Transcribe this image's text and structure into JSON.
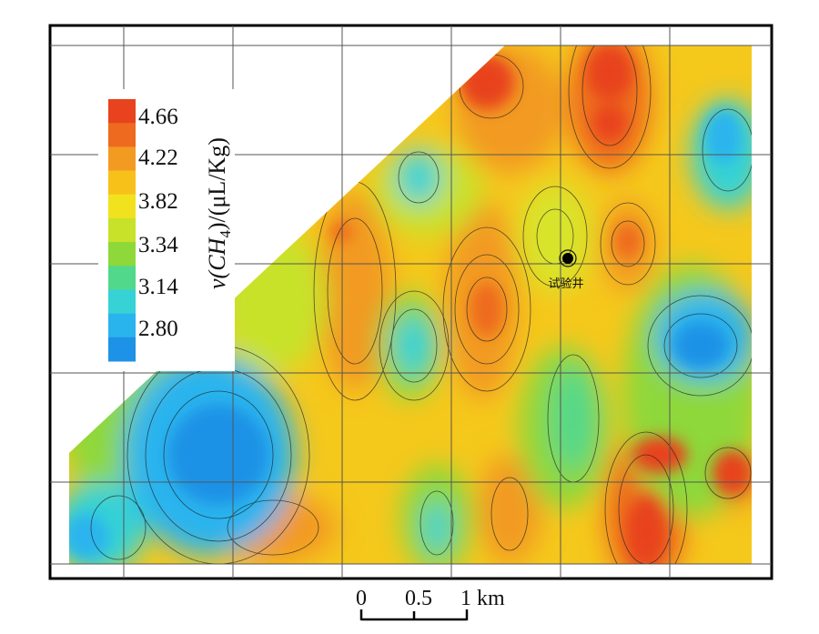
{
  "legend": {
    "ticks": [
      "4.66",
      "4.22",
      "3.82",
      "3.34",
      "3.14",
      "2.80"
    ],
    "unit_prefix": "v(CH",
    "unit_sub": "4",
    "unit_suffix": ")/(μL/Kg)",
    "colors": [
      "#e8421e",
      "#ee6a1e",
      "#f29a22",
      "#f7c11a",
      "#f2e21e",
      "#c8e22a",
      "#8ed83a",
      "#52d88a",
      "#36d2d6",
      "#2ab4ee",
      "#1e92e6"
    ]
  },
  "well": {
    "label": "试验井"
  },
  "scale_bar": {
    "labels": [
      "0",
      "0.5",
      "1 km"
    ]
  },
  "colors": {
    "high": "#e8421e",
    "mid": "#f7c11a",
    "low": "#1e92e6",
    "grid": "#555555",
    "frame": "#000000"
  }
}
